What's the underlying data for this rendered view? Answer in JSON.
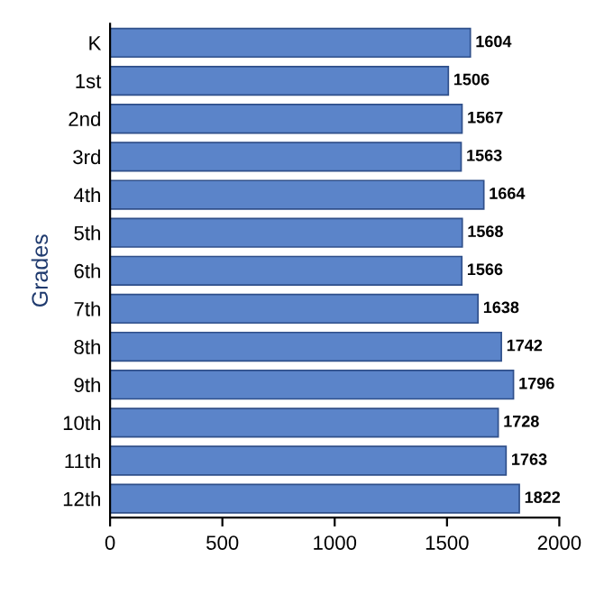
{
  "chart_data": {
    "type": "bar",
    "orientation": "horizontal",
    "ylabel": "Grades",
    "categories": [
      "K",
      "1st",
      "2nd",
      "3rd",
      "4th",
      "5th",
      "6th",
      "7th",
      "8th",
      "9th",
      "10th",
      "11th",
      "12th"
    ],
    "values": [
      1604,
      1506,
      1567,
      1563,
      1664,
      1568,
      1566,
      1638,
      1742,
      1796,
      1728,
      1763,
      1822
    ],
    "color": "#5b84c9",
    "xlim": [
      0,
      2000
    ],
    "xticks": [
      0,
      500,
      1000,
      1500,
      2000
    ],
    "data_labels": true,
    "grid": false,
    "legend": false
  }
}
